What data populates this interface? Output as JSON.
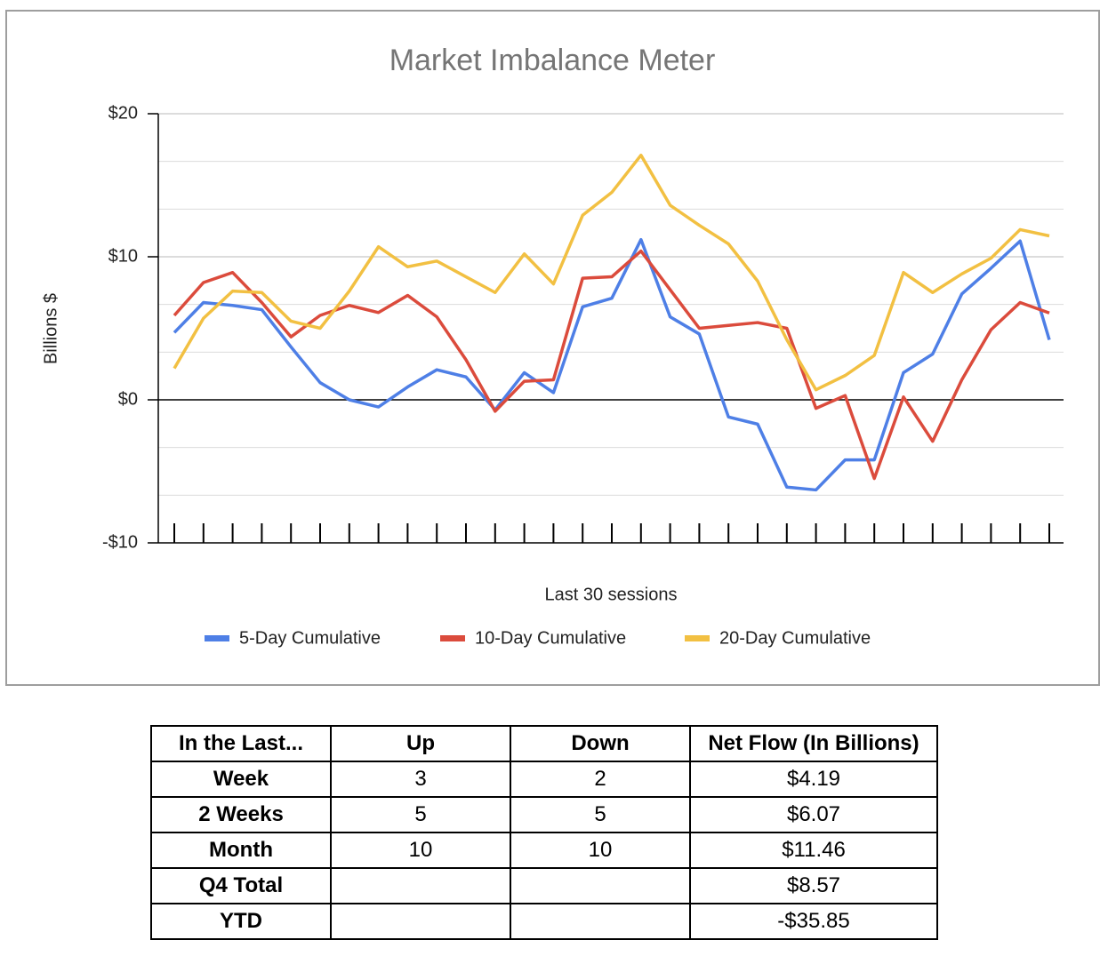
{
  "chart_data": {
    "type": "line",
    "title": "Market Imbalance Meter",
    "x_label": "Last 30 sessions",
    "y_label": "Billions $",
    "categories": [
      null,
      null,
      null,
      null,
      null,
      null,
      null,
      null,
      null,
      null,
      null,
      null,
      null,
      null,
      null,
      null,
      null,
      null,
      null,
      null,
      null,
      null,
      null,
      null,
      null,
      null,
      null,
      null,
      null,
      null,
      null
    ],
    "series": [
      {
        "name": "5-Day Cumulative",
        "color": "#4e7fe6",
        "values": [
          4.7,
          6.8,
          6.6,
          6.3,
          3.7,
          1.2,
          0.0,
          -0.5,
          0.9,
          2.1,
          1.6,
          -0.7,
          1.9,
          0.5,
          6.5,
          7.1,
          11.2,
          5.8,
          4.6,
          -1.2,
          -1.7,
          -6.1,
          -6.3,
          -4.2,
          -4.2,
          1.9,
          3.2,
          7.4,
          9.2,
          11.1,
          4.19
        ]
      },
      {
        "name": "10-Day Cumulative",
        "color": "#db4b3c",
        "values": [
          5.9,
          8.2,
          8.9,
          6.8,
          4.4,
          5.9,
          6.6,
          6.1,
          7.3,
          5.8,
          2.8,
          -0.8,
          1.3,
          1.4,
          8.5,
          8.6,
          10.4,
          7.7,
          5.0,
          5.2,
          5.4,
          5.0,
          -0.6,
          0.3,
          -5.5,
          0.2,
          -2.9,
          1.4,
          4.9,
          6.8,
          6.07
        ]
      },
      {
        "name": "20-Day Cumulative",
        "color": "#f2c042",
        "values": [
          2.2,
          5.7,
          7.6,
          7.5,
          5.5,
          5.0,
          7.6,
          10.7,
          9.3,
          9.7,
          8.6,
          7.5,
          10.2,
          8.1,
          12.9,
          14.5,
          17.1,
          13.6,
          12.2,
          10.9,
          8.3,
          4.2,
          0.7,
          1.7,
          3.1,
          8.9,
          7.5,
          8.8,
          9.9,
          11.9,
          11.46
        ]
      }
    ],
    "ylim": [
      -10,
      20
    ],
    "yticks": [
      {
        "value": -10,
        "label": "-$10"
      },
      {
        "value": 0,
        "label": "$0"
      },
      {
        "value": 10,
        "label": "$10"
      },
      {
        "value": 20,
        "label": "$20"
      }
    ],
    "grid": true,
    "minor_grid_per_tick": 3,
    "legend": "bottom"
  },
  "table": {
    "header": [
      "In the Last...",
      "Up",
      "Down",
      "Net Flow (In Billions)"
    ],
    "rows": [
      [
        "Week",
        "3",
        "2",
        "$4.19"
      ],
      [
        "2 Weeks",
        "5",
        "5",
        "$6.07"
      ],
      [
        "Month",
        "10",
        "10",
        "$11.46"
      ],
      [
        "Q4 Total",
        null,
        null,
        "$8.57"
      ],
      [
        "YTD",
        null,
        null,
        "-$35.85"
      ]
    ]
  }
}
